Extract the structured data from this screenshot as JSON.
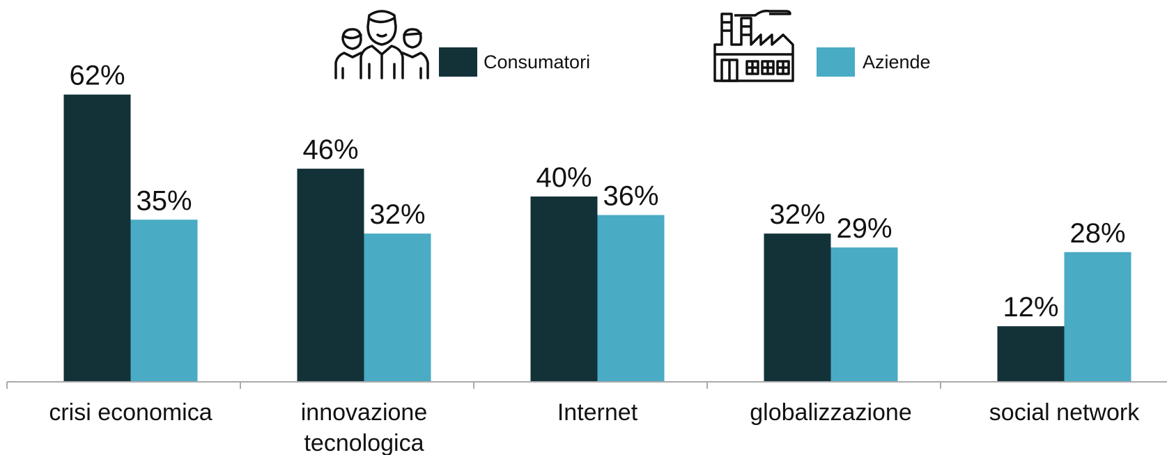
{
  "chart_data": {
    "type": "bar",
    "categories": [
      [
        "crisi economica"
      ],
      [
        "innovazione",
        "tecnologica"
      ],
      [
        "Internet"
      ],
      [
        "globalizzazione"
      ],
      [
        "social network"
      ]
    ],
    "series": [
      {
        "name": "Consumatori",
        "color": "#123238",
        "values": [
          62,
          46,
          40,
          32,
          12
        ],
        "labels": [
          "62%",
          "46%",
          "40%",
          "32%",
          "12%"
        ]
      },
      {
        "name": "Aziende",
        "color": "#4aabc4",
        "values": [
          35,
          32,
          36,
          29,
          28
        ],
        "labels": [
          "35%",
          "32%",
          "36%",
          "29%",
          "28%"
        ]
      }
    ],
    "ylim": [
      0,
      65
    ],
    "grid": false,
    "legend_position": "top",
    "legend_icons": [
      "people-group-icon",
      "factory-icon"
    ],
    "title": "",
    "xlabel": "",
    "ylabel": ""
  }
}
